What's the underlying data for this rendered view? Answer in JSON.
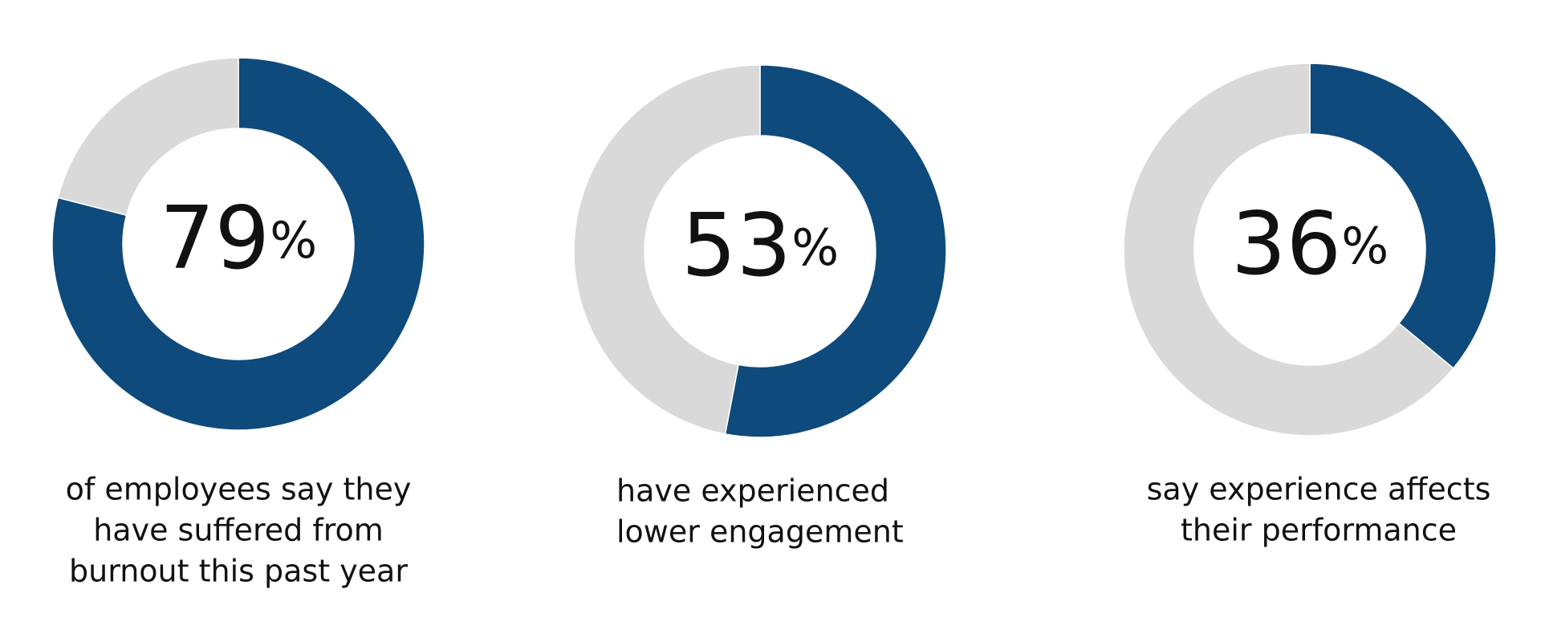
{
  "chart_data": [
    {
      "type": "donut",
      "values": [
        79,
        21
      ],
      "colors": [
        "#0e4a7b",
        "#d9d9d9"
      ],
      "center_label": "79%",
      "caption": [
        "of employees say they",
        "have suffered from",
        "burnout this past year"
      ]
    },
    {
      "type": "donut",
      "values": [
        53,
        47
      ],
      "colors": [
        "#0e4a7b",
        "#d9d9d9"
      ],
      "center_label": "53%",
      "caption": [
        "have experienced",
        "lower engagement"
      ]
    },
    {
      "type": "donut",
      "values": [
        36,
        64
      ],
      "colors": [
        "#0e4a7b",
        "#d9d9d9"
      ],
      "center_label": "36%",
      "caption": [
        "say experience affects",
        "their performance"
      ]
    }
  ]
}
